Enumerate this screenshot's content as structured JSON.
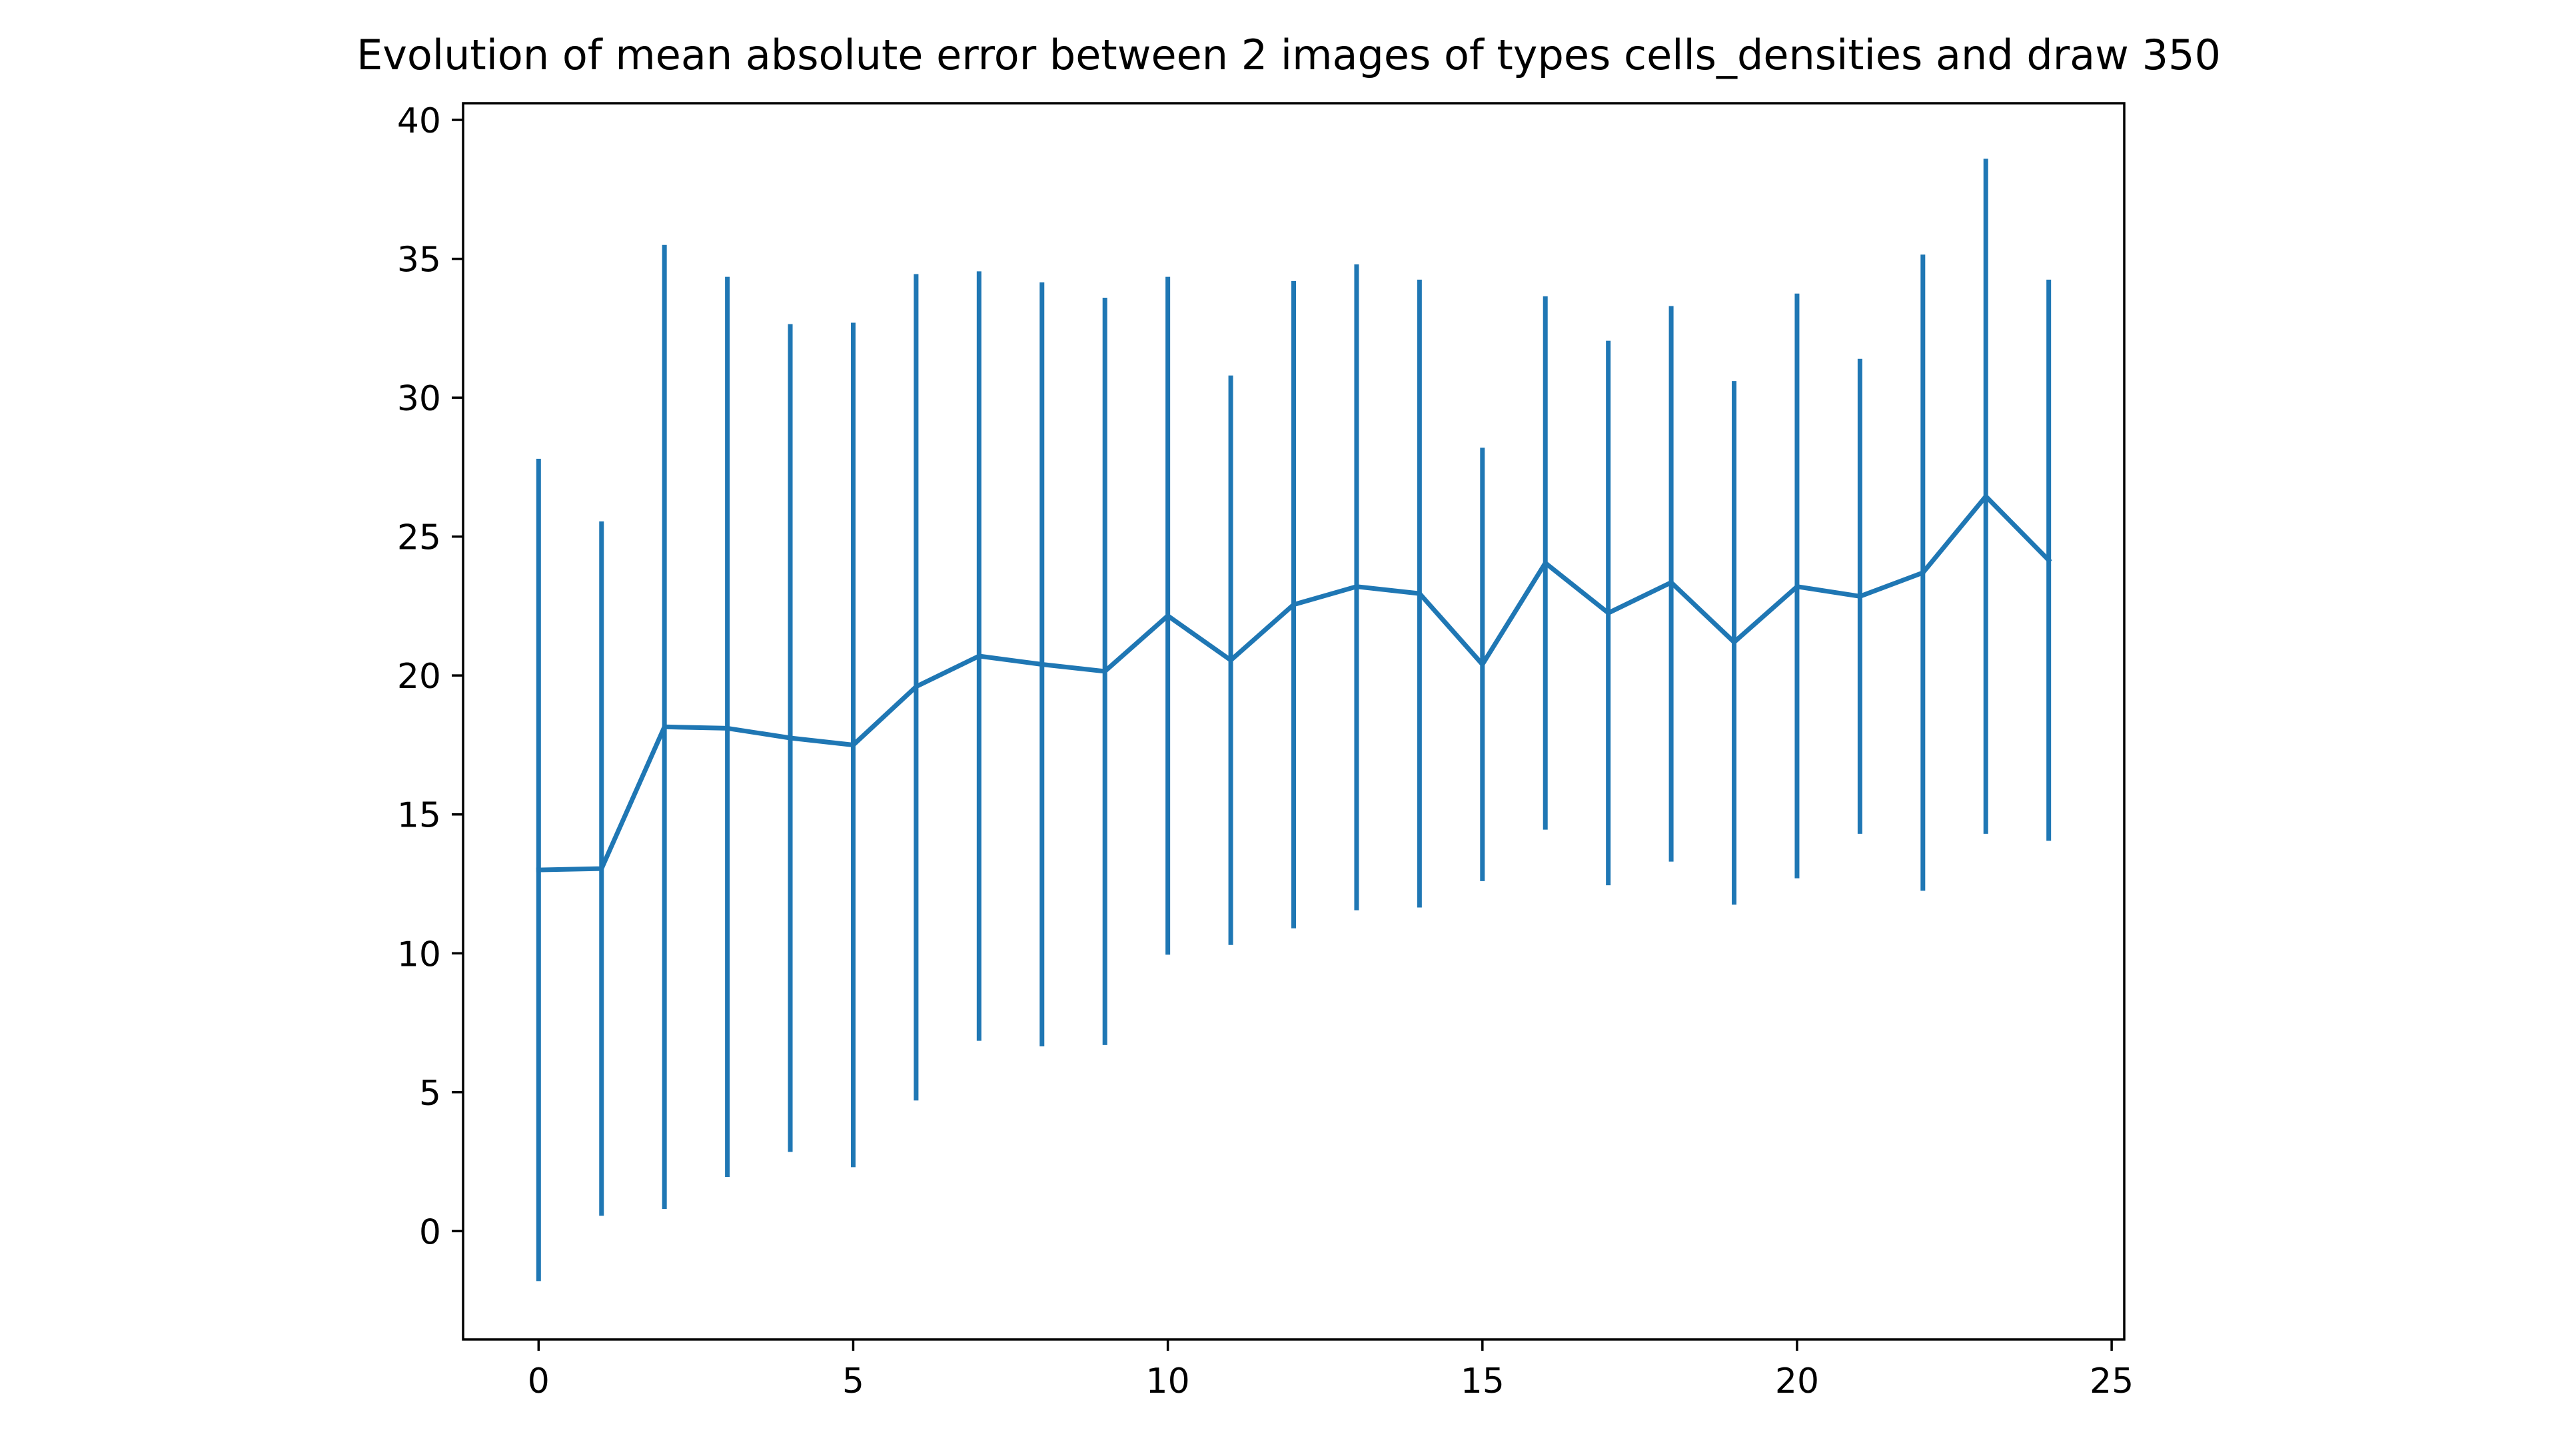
{
  "chart_data": {
    "type": "line",
    "title": "Evolution of mean absolute error between 2 images of types cells_densities and draw 350",
    "xlabel": "",
    "ylabel": "",
    "xlim": [
      -1.2,
      25.2
    ],
    "ylim": [
      -3.9,
      40.6
    ],
    "xticks": [
      0,
      5,
      10,
      15,
      20,
      25
    ],
    "yticks": [
      0,
      5,
      10,
      15,
      20,
      25,
      30,
      35,
      40
    ],
    "grid": false,
    "legend": false,
    "color": "#1f77b4",
    "series": [
      {
        "x": [
          0,
          1,
          2,
          3,
          4,
          5,
          6,
          7,
          8,
          9,
          10,
          11,
          12,
          13,
          14,
          15,
          16,
          17,
          18,
          19,
          20,
          21,
          22,
          23,
          24
        ],
        "values": [
          13.0,
          13.05,
          18.15,
          18.1,
          17.75,
          17.5,
          19.6,
          20.7,
          20.4,
          20.15,
          22.15,
          20.55,
          22.55,
          23.2,
          22.95,
          20.4,
          24.05,
          22.25,
          23.35,
          21.2,
          23.2,
          22.85,
          23.7,
          26.45,
          24.15
        ],
        "error_low": [
          -1.8,
          0.55,
          0.8,
          1.95,
          2.85,
          2.3,
          4.7,
          6.85,
          6.65,
          6.7,
          9.95,
          10.3,
          10.9,
          11.55,
          11.65,
          12.6,
          14.45,
          12.45,
          13.3,
          11.75,
          12.7,
          14.3,
          12.25,
          14.3,
          14.05
        ],
        "error_high": [
          27.8,
          25.55,
          35.5,
          34.35,
          32.65,
          32.7,
          34.45,
          34.55,
          34.15,
          33.6,
          34.35,
          30.8,
          34.2,
          34.8,
          34.25,
          28.2,
          33.65,
          32.05,
          33.3,
          30.6,
          33.75,
          31.4,
          35.15,
          38.6,
          34.25
        ]
      }
    ]
  }
}
